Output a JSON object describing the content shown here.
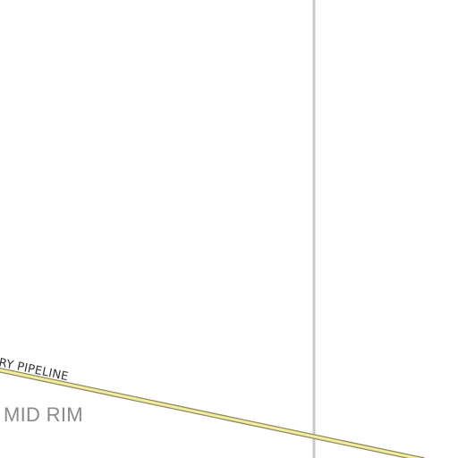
{
  "map": {
    "colors": {
      "background": "#ffffff",
      "boundary": "#c8c8c8",
      "pipeline_fill": "#f3eca3",
      "pipeline_casing": "#8f8a5a",
      "road_label": "#333333",
      "area_label": "#8a8a8a"
    },
    "labels": {
      "pipeline": "RY PIPELINE",
      "area": "MID RIM"
    }
  }
}
